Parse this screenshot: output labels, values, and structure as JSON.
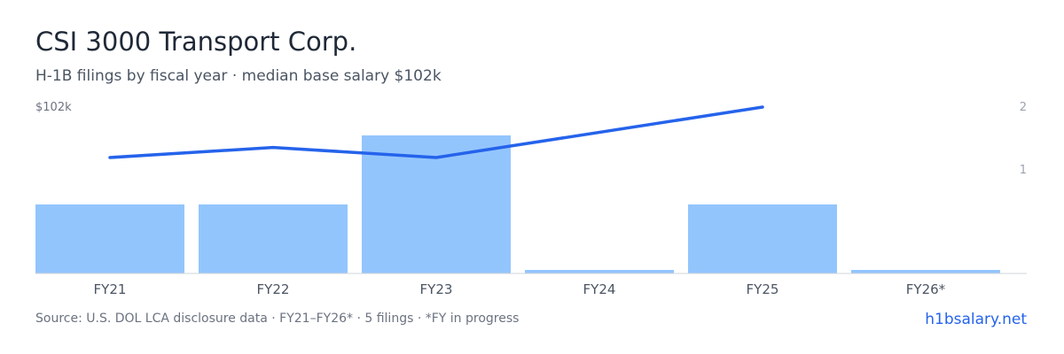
{
  "header": {
    "title": "CSI 3000 Transport Corp.",
    "subtitle": "H-1B filings by fiscal year · median base salary $102k"
  },
  "footer": {
    "source": "Source: U.S. DOL LCA disclosure data · FY21–FY26* · 5 filings · *FY in progress",
    "brand": "h1bsalary.net"
  },
  "colors": {
    "bar": "#93c5fd",
    "line": "#2563eb",
    "axis": "#d1d5db"
  },
  "chart_data": {
    "type": "bar",
    "categories": [
      "FY21",
      "FY22",
      "FY23",
      "FY24",
      "FY25",
      "FY26*"
    ],
    "series": [
      {
        "type": "bar",
        "axis": "right",
        "values": [
          1,
          1,
          2,
          0,
          1,
          0
        ]
      },
      {
        "type": "line",
        "axis": "left",
        "values": [
          97,
          98,
          97,
          null,
          102,
          null
        ]
      }
    ],
    "left_axis": {
      "ticks": [
        "$102k"
      ]
    },
    "right_axis": {
      "ticks": [
        "2",
        "1"
      ],
      "range": [
        0,
        2.4
      ]
    },
    "grid": false,
    "legend": "none"
  }
}
